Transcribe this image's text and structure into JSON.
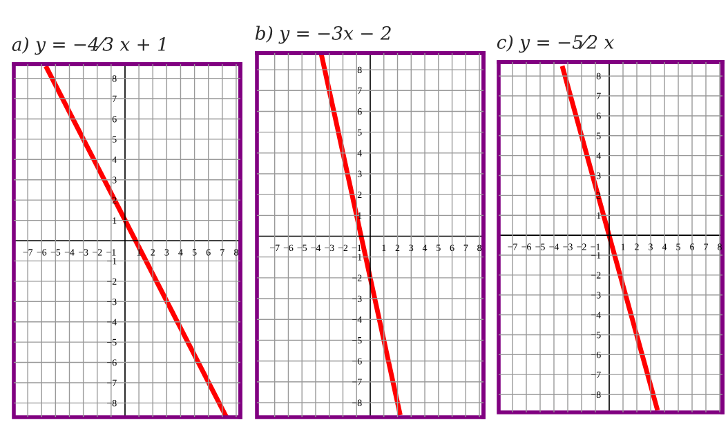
{
  "chart_data": [
    {
      "type": "line",
      "title": "a) y = −4⁄3 x + 1",
      "x": [
        -5.7,
        7.3
      ],
      "series": [
        {
          "color": "#ff0000",
          "values": [
            8.6,
            -8.7
          ]
        }
      ],
      "xlim": [
        -8,
        8.3
      ],
      "ylim": [
        -8.7,
        8.7
      ],
      "xticks": [
        -7,
        -6,
        -5,
        -4,
        -3,
        -2,
        -1,
        1,
        2,
        3,
        4,
        5,
        6,
        7,
        8
      ],
      "yticks": [
        -8,
        -7,
        -6,
        -5,
        -4,
        -3,
        -2,
        -1,
        1,
        2,
        3,
        4,
        5,
        6,
        7,
        8
      ],
      "grid": true,
      "marker": "none",
      "line_style": "solid",
      "legend": false
    },
    {
      "type": "line",
      "title": "b) y = −3x − 2",
      "x": [
        -3.6,
        2.2
      ],
      "series": [
        {
          "color": "#ff0000",
          "values": [
            8.8,
            -8.6
          ]
        }
      ],
      "xlim": [
        -8.3,
        8.3
      ],
      "ylim": [
        -8.7,
        8.8
      ],
      "xticks": [
        -7,
        -6,
        -5,
        -4,
        -3,
        -2,
        -1,
        1,
        2,
        3,
        4,
        5,
        6,
        7,
        8
      ],
      "yticks": [
        -8,
        -7,
        -6,
        -5,
        -4,
        -3,
        -2,
        -1,
        1,
        2,
        3,
        4,
        5,
        6,
        7,
        8
      ],
      "grid": true,
      "marker": "none",
      "line_style": "solid",
      "legend": false
    },
    {
      "type": "line",
      "title": "c) y = −5⁄2 x",
      "x": [
        -3.4,
        3.5
      ],
      "series": [
        {
          "color": "#ff0000",
          "values": [
            8.5,
            -8.8
          ]
        }
      ],
      "xlim": [
        -8,
        8.2
      ],
      "ylim": [
        -8.9,
        8.7
      ],
      "xticks": [
        -7,
        -6,
        -5,
        -4,
        -3,
        -2,
        -1,
        1,
        2,
        3,
        4,
        5,
        6,
        7,
        8
      ],
      "yticks": [
        -8,
        -7,
        -6,
        -5,
        -4,
        -3,
        -2,
        -1,
        1,
        2,
        3,
        4,
        5,
        6,
        7,
        8
      ],
      "grid": true,
      "marker": "none",
      "line_style": "solid",
      "legend": false
    }
  ]
}
